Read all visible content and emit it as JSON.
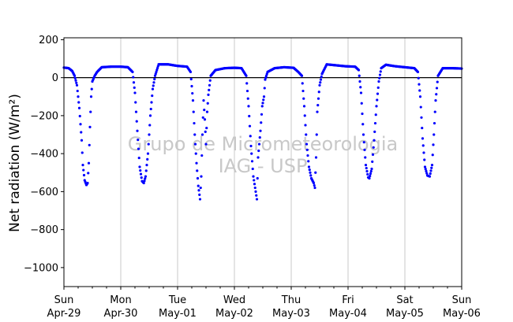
{
  "chart_data": {
    "type": "scatter",
    "title": "",
    "ylabel": "Net radiation (W/m²)",
    "xlabel": "",
    "ylim": [
      -1100,
      210
    ],
    "yticks": [
      200,
      0,
      -200,
      -400,
      -600,
      -800,
      -1000
    ],
    "yticks_labels": [
      "200",
      "0",
      "−200",
      "−400",
      "−600",
      "−800",
      "−1000"
    ],
    "xlim": [
      "2018-04-29",
      "2018-05-06"
    ],
    "xticks": [
      {
        "day": "Sun",
        "date": "Apr-29"
      },
      {
        "day": "Mon",
        "date": "Apr-30"
      },
      {
        "day": "Tue",
        "date": "May-01"
      },
      {
        "day": "Wed",
        "date": "May-02"
      },
      {
        "day": "Thu",
        "date": "May-03"
      },
      {
        "day": "Fri",
        "date": "May-04"
      },
      {
        "day": "Sat",
        "date": "May-05"
      },
      {
        "day": "Sun",
        "date": "May-06"
      }
    ],
    "vertical_grid": true,
    "zero_line": true,
    "marker_color": "#0000ff",
    "watermark": [
      "Grupo de Micrometeorologia",
      "IAG - USP"
    ],
    "series": [
      {
        "values": [
          {
            "x": "04-29 00:00",
            "y": 53
          },
          {
            "x": "04-29 02:00",
            "y": 50
          },
          {
            "x": "04-29 03:30",
            "y": 35
          },
          {
            "x": "04-29 04:30",
            "y": 10
          },
          {
            "x": "04-29 05:30",
            "y": -40
          },
          {
            "x": "04-29 06:30",
            "y": -160
          },
          {
            "x": "04-29 07:30",
            "y": -330
          },
          {
            "x": "04-29 08:00",
            "y": -460
          },
          {
            "x": "04-29 08:45",
            "y": -540
          },
          {
            "x": "04-29 09:30",
            "y": -565
          },
          {
            "x": "04-29 10:00",
            "y": -555
          },
          {
            "x": "04-29 10:30",
            "y": -450
          },
          {
            "x": "04-29 11:00",
            "y": -260
          },
          {
            "x": "04-29 11:30",
            "y": -100
          },
          {
            "x": "04-29 12:00",
            "y": -20
          },
          {
            "x": "04-29 13:00",
            "y": 10
          },
          {
            "x": "04-29 14:00",
            "y": 30
          },
          {
            "x": "04-29 16:00",
            "y": 55
          },
          {
            "x": "04-29 20:00",
            "y": 58
          },
          {
            "x": "04-30 00:00",
            "y": 58
          },
          {
            "x": "04-30 03:00",
            "y": 55
          },
          {
            "x": "04-30 05:00",
            "y": 30
          },
          {
            "x": "04-30 06:00",
            "y": -80
          },
          {
            "x": "04-30 07:00",
            "y": -280
          },
          {
            "x": "04-30 08:00",
            "y": -470
          },
          {
            "x": "04-30 09:00",
            "y": -545
          },
          {
            "x": "04-30 09:45",
            "y": -555
          },
          {
            "x": "04-30 10:30",
            "y": -520
          },
          {
            "x": "04-30 11:30",
            "y": -400
          },
          {
            "x": "04-30 12:30",
            "y": -200
          },
          {
            "x": "04-30 13:30",
            "y": -60
          },
          {
            "x": "04-30 14:30",
            "y": 10
          },
          {
            "x": "04-30 16:00",
            "y": 70
          },
          {
            "x": "04-30 20:00",
            "y": 70
          },
          {
            "x": "05-01 00:00",
            "y": 62
          },
          {
            "x": "05-01 04:00",
            "y": 58
          },
          {
            "x": "05-01 05:30",
            "y": 30
          },
          {
            "x": "05-01 06:30",
            "y": -120
          },
          {
            "x": "05-01 07:15",
            "y": -300
          },
          {
            "x": "05-01 08:00",
            "y": -450
          },
          {
            "x": "05-01 08:45",
            "y": -570
          },
          {
            "x": "05-01 09:30",
            "y": -640
          },
          {
            "x": "05-01 10:00",
            "y": -520
          },
          {
            "x": "05-01 10:30",
            "y": -300
          },
          {
            "x": "05-01 11:00",
            "y": -120
          },
          {
            "x": "05-01 11:30",
            "y": -220
          },
          {
            "x": "05-01 12:00",
            "y": -350
          },
          {
            "x": "05-01 12:30",
            "y": -180
          },
          {
            "x": "05-01 13:00",
            "y": -90
          },
          {
            "x": "05-01 14:00",
            "y": 10
          },
          {
            "x": "05-01 16:00",
            "y": 40
          },
          {
            "x": "05-01 20:00",
            "y": 50
          },
          {
            "x": "05-02 00:00",
            "y": 52
          },
          {
            "x": "05-02 03:00",
            "y": 50
          },
          {
            "x": "05-02 05:00",
            "y": 10
          },
          {
            "x": "05-02 06:00",
            "y": -150
          },
          {
            "x": "05-02 07:00",
            "y": -360
          },
          {
            "x": "05-02 08:00",
            "y": -520
          },
          {
            "x": "05-02 09:00",
            "y": -600
          },
          {
            "x": "05-02 09:30",
            "y": -640
          },
          {
            "x": "05-02 10:00",
            "y": -420
          },
          {
            "x": "05-02 11:00",
            "y": -280
          },
          {
            "x": "05-02 11:45",
            "y": -150
          },
          {
            "x": "05-02 12:30",
            "y": -100
          },
          {
            "x": "05-02 13:00",
            "y": -10
          },
          {
            "x": "05-02 14:00",
            "y": 30
          },
          {
            "x": "05-02 17:00",
            "y": 50
          },
          {
            "x": "05-02 21:00",
            "y": 55
          },
          {
            "x": "05-03 01:00",
            "y": 52
          },
          {
            "x": "05-03 03:00",
            "y": 30
          },
          {
            "x": "05-03 04:30",
            "y": 10
          },
          {
            "x": "05-03 05:30",
            "y": -150
          },
          {
            "x": "05-03 06:30",
            "y": -350
          },
          {
            "x": "05-03 07:30",
            "y": -470
          },
          {
            "x": "05-03 08:30",
            "y": -530
          },
          {
            "x": "05-03 09:30",
            "y": -555
          },
          {
            "x": "05-03 10:00",
            "y": -580
          },
          {
            "x": "05-03 10:30",
            "y": -420
          },
          {
            "x": "05-03 11:00",
            "y": -180
          },
          {
            "x": "05-03 12:00",
            "y": -40
          },
          {
            "x": "05-03 13:00",
            "y": 20
          },
          {
            "x": "05-03 15:00",
            "y": 70
          },
          {
            "x": "05-03 19:00",
            "y": 65
          },
          {
            "x": "05-03 23:00",
            "y": 60
          },
          {
            "x": "05-04 03:00",
            "y": 58
          },
          {
            "x": "05-04 04:30",
            "y": 40
          },
          {
            "x": "05-04 05:30",
            "y": -80
          },
          {
            "x": "05-04 06:30",
            "y": -300
          },
          {
            "x": "05-04 07:30",
            "y": -460
          },
          {
            "x": "05-04 08:30",
            "y": -525
          },
          {
            "x": "05-04 09:00",
            "y": -530
          },
          {
            "x": "05-04 10:00",
            "y": -480
          },
          {
            "x": "05-04 11:00",
            "y": -330
          },
          {
            "x": "05-04 12:00",
            "y": -150
          },
          {
            "x": "05-04 13:00",
            "y": -20
          },
          {
            "x": "05-04 14:00",
            "y": 50
          },
          {
            "x": "05-04 16:00",
            "y": 68
          },
          {
            "x": "05-04 20:00",
            "y": 60
          },
          {
            "x": "05-05 00:00",
            "y": 55
          },
          {
            "x": "05-05 04:00",
            "y": 50
          },
          {
            "x": "05-05 05:30",
            "y": 30
          },
          {
            "x": "05-05 06:30",
            "y": -100
          },
          {
            "x": "05-05 07:30",
            "y": -320
          },
          {
            "x": "05-05 08:30",
            "y": -470
          },
          {
            "x": "05-05 09:30",
            "y": -515
          },
          {
            "x": "05-05 10:30",
            "y": -520
          },
          {
            "x": "05-05 11:30",
            "y": -460
          },
          {
            "x": "05-05 12:15",
            "y": -300
          },
          {
            "x": "05-05 13:00",
            "y": -120
          },
          {
            "x": "05-05 14:00",
            "y": 10
          },
          {
            "x": "05-05 16:00",
            "y": 50
          },
          {
            "x": "05-05 20:00",
            "y": 50
          },
          {
            "x": "05-05 23:59",
            "y": 48
          }
        ]
      }
    ]
  }
}
